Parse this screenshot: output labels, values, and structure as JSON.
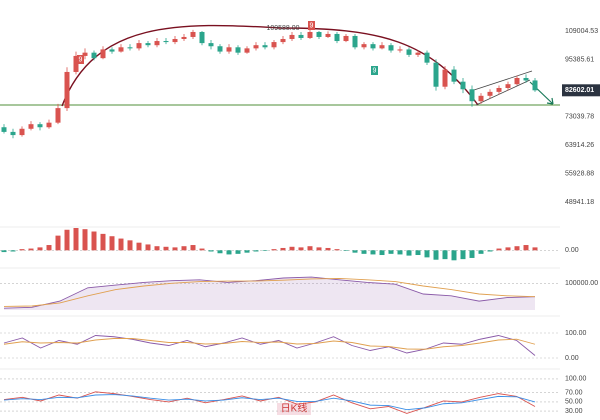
{
  "period_label": "日K线",
  "chart_data": [
    {
      "type": "candlestick",
      "log_scale": true,
      "ylim": [
        44000,
        126000
      ],
      "yticks": [
        109004.53,
        95385.61,
        73039.78,
        63914.26,
        55928.88,
        48941.18
      ],
      "up_color": "#d9534f",
      "down_color": "#2ba58c",
      "annotations": [
        "109588.00",
        "9",
        "9",
        "9"
      ],
      "open": [
        69500,
        68000,
        67000,
        69000,
        70500,
        69500,
        71000,
        76000,
        90000,
        97000,
        98500,
        96000,
        100000,
        99000,
        101000,
        100500,
        103000,
        102000,
        104000,
        103500,
        105000,
        106000,
        108500,
        103000,
        101500,
        99000,
        101000,
        98500,
        100500,
        102000,
        101000,
        103500,
        105000,
        107000,
        105500,
        108500,
        106000,
        107500,
        104000,
        106500,
        101000,
        102500,
        100500,
        102000,
        99500,
        100000,
        97500,
        98500,
        94000,
        84000,
        91000,
        86000,
        83000,
        78500,
        80500,
        82000,
        83500,
        85000,
        87500,
        86500
      ],
      "close": [
        68000,
        67000,
        69000,
        70500,
        69500,
        71000,
        76000,
        90000,
        97000,
        98500,
        96000,
        100000,
        99000,
        101000,
        100500,
        103000,
        102000,
        104000,
        103500,
        105000,
        106000,
        108500,
        103000,
        101500,
        99000,
        101000,
        98500,
        100500,
        102000,
        101000,
        103500,
        105000,
        107000,
        105500,
        108500,
        106000,
        107500,
        104000,
        106500,
        101000,
        102500,
        100500,
        102000,
        99500,
        100000,
        97500,
        98500,
        94000,
        84000,
        91000,
        86000,
        83000,
        78500,
        80500,
        82000,
        83500,
        85000,
        87500,
        86500,
        82602.01
      ],
      "high": [
        70500,
        69000,
        69800,
        71500,
        71200,
        72000,
        77500,
        92000,
        99000,
        100500,
        99500,
        101500,
        101000,
        102500,
        102500,
        104500,
        104000,
        105500,
        105500,
        106500,
        107500,
        109588,
        109000,
        104500,
        102500,
        102500,
        102000,
        101500,
        103500,
        103500,
        104500,
        106500,
        108500,
        108500,
        109500,
        109000,
        108800,
        108500,
        107500,
        107500,
        103500,
        103500,
        103500,
        103000,
        101500,
        101000,
        99500,
        99500,
        95500,
        92500,
        92500,
        87500,
        84500,
        81500,
        83000,
        84500,
        86000,
        88500,
        89000,
        87500
      ],
      "low": [
        67500,
        66000,
        66500,
        68500,
        68500,
        69000,
        70500,
        75000,
        89000,
        95500,
        95000,
        95500,
        98000,
        98500,
        99500,
        99500,
        101000,
        101000,
        102500,
        102500,
        104000,
        105000,
        102000,
        100000,
        98000,
        98000,
        97500,
        98000,
        99500,
        100000,
        100000,
        102500,
        104000,
        104500,
        105000,
        105000,
        105500,
        103000,
        103500,
        100000,
        100000,
        99500,
        100000,
        98500,
        98500,
        96500,
        96500,
        93000,
        82500,
        83000,
        85000,
        81500,
        76500,
        77500,
        79500,
        81000,
        82500,
        84500,
        85500,
        82000
      ]
    },
    {
      "type": "bar",
      "ylim": [
        -2500,
        3800
      ],
      "yticks": [
        {
          "value": 0,
          "label": "0.00"
        }
      ],
      "pos_color": "#d9534f",
      "neg_color": "#2ba58c",
      "values": [
        -300,
        -200,
        200,
        300,
        500,
        900,
        2500,
        3500,
        3800,
        3600,
        3200,
        2800,
        2400,
        2000,
        1700,
        1300,
        1000,
        700,
        600,
        500,
        700,
        900,
        300,
        -200,
        -500,
        -700,
        -600,
        -400,
        -200,
        -100,
        200,
        400,
        600,
        500,
        700,
        500,
        400,
        200,
        -100,
        -400,
        -600,
        -700,
        -800,
        -600,
        -700,
        -900,
        -800,
        -1200,
        -1600,
        -1500,
        -1700,
        -1500,
        -1300,
        -600,
        -200,
        300,
        500,
        700,
        900,
        500
      ]
    },
    {
      "type": "area",
      "ylim": [
        70000,
        115000
      ],
      "yticks": [
        {
          "value": 100000,
          "label": "100000.00"
        }
      ],
      "series": [
        {
          "color": "#8a5aa8",
          "values": [
            72000,
            73000,
            80000,
            95000,
            98000,
            101000,
            103000,
            104000,
            101000,
            103000,
            106000,
            107000,
            104000,
            101000,
            99000,
            88000,
            86000,
            80000,
            84000,
            85000
          ]
        },
        {
          "color": "#e0a050",
          "values": [
            74000,
            74500,
            78000,
            86000,
            93000,
            97000,
            100000,
            102000,
            102500,
            102500,
            103500,
            105000,
            105500,
            104000,
            102000,
            97000,
            93000,
            88000,
            86000,
            85000
          ]
        }
      ]
    },
    {
      "type": "line",
      "ylim": [
        -28,
        152
      ],
      "yticks": [
        {
          "value": 100,
          "label": "100.00"
        },
        {
          "value": 0,
          "label": "0.00"
        }
      ],
      "series": [
        {
          "color": "#8a5aa8",
          "values": [
            60,
            80,
            40,
            70,
            55,
            90,
            85,
            75,
            60,
            50,
            70,
            45,
            60,
            80,
            55,
            70,
            40,
            60,
            85,
            50,
            30,
            45,
            20,
            35,
            60,
            55,
            75,
            90,
            70,
            10
          ]
        },
        {
          "color": "#e0a050",
          "values": [
            55,
            65,
            60,
            62,
            60,
            72,
            78,
            78,
            70,
            62,
            62,
            56,
            58,
            66,
            62,
            64,
            56,
            58,
            68,
            62,
            48,
            46,
            36,
            35,
            45,
            50,
            60,
            72,
            75,
            55
          ]
        }
      ]
    },
    {
      "type": "line",
      "ylim": [
        15,
        115
      ],
      "yticks": [
        {
          "value": 100,
          "label": "100.00"
        },
        {
          "value": 70,
          "label": "70.00"
        },
        {
          "value": 50,
          "label": "50.00"
        },
        {
          "value": 30,
          "label": "30.00"
        }
      ],
      "series": [
        {
          "color": "#d9534f",
          "values": [
            55,
            60,
            52,
            65,
            58,
            72,
            68,
            62,
            55,
            50,
            58,
            48,
            55,
            63,
            52,
            60,
            45,
            50,
            65,
            48,
            35,
            40,
            25,
            38,
            52,
            50,
            60,
            68,
            62,
            40
          ]
        },
        {
          "color": "#3a8ee6",
          "values": [
            54,
            57,
            55,
            60,
            59,
            65,
            66,
            63,
            58,
            54,
            56,
            52,
            54,
            59,
            55,
            58,
            51,
            51,
            58,
            52,
            43,
            42,
            33,
            37,
            46,
            48,
            55,
            62,
            61,
            50
          ]
        }
      ]
    }
  ]
}
